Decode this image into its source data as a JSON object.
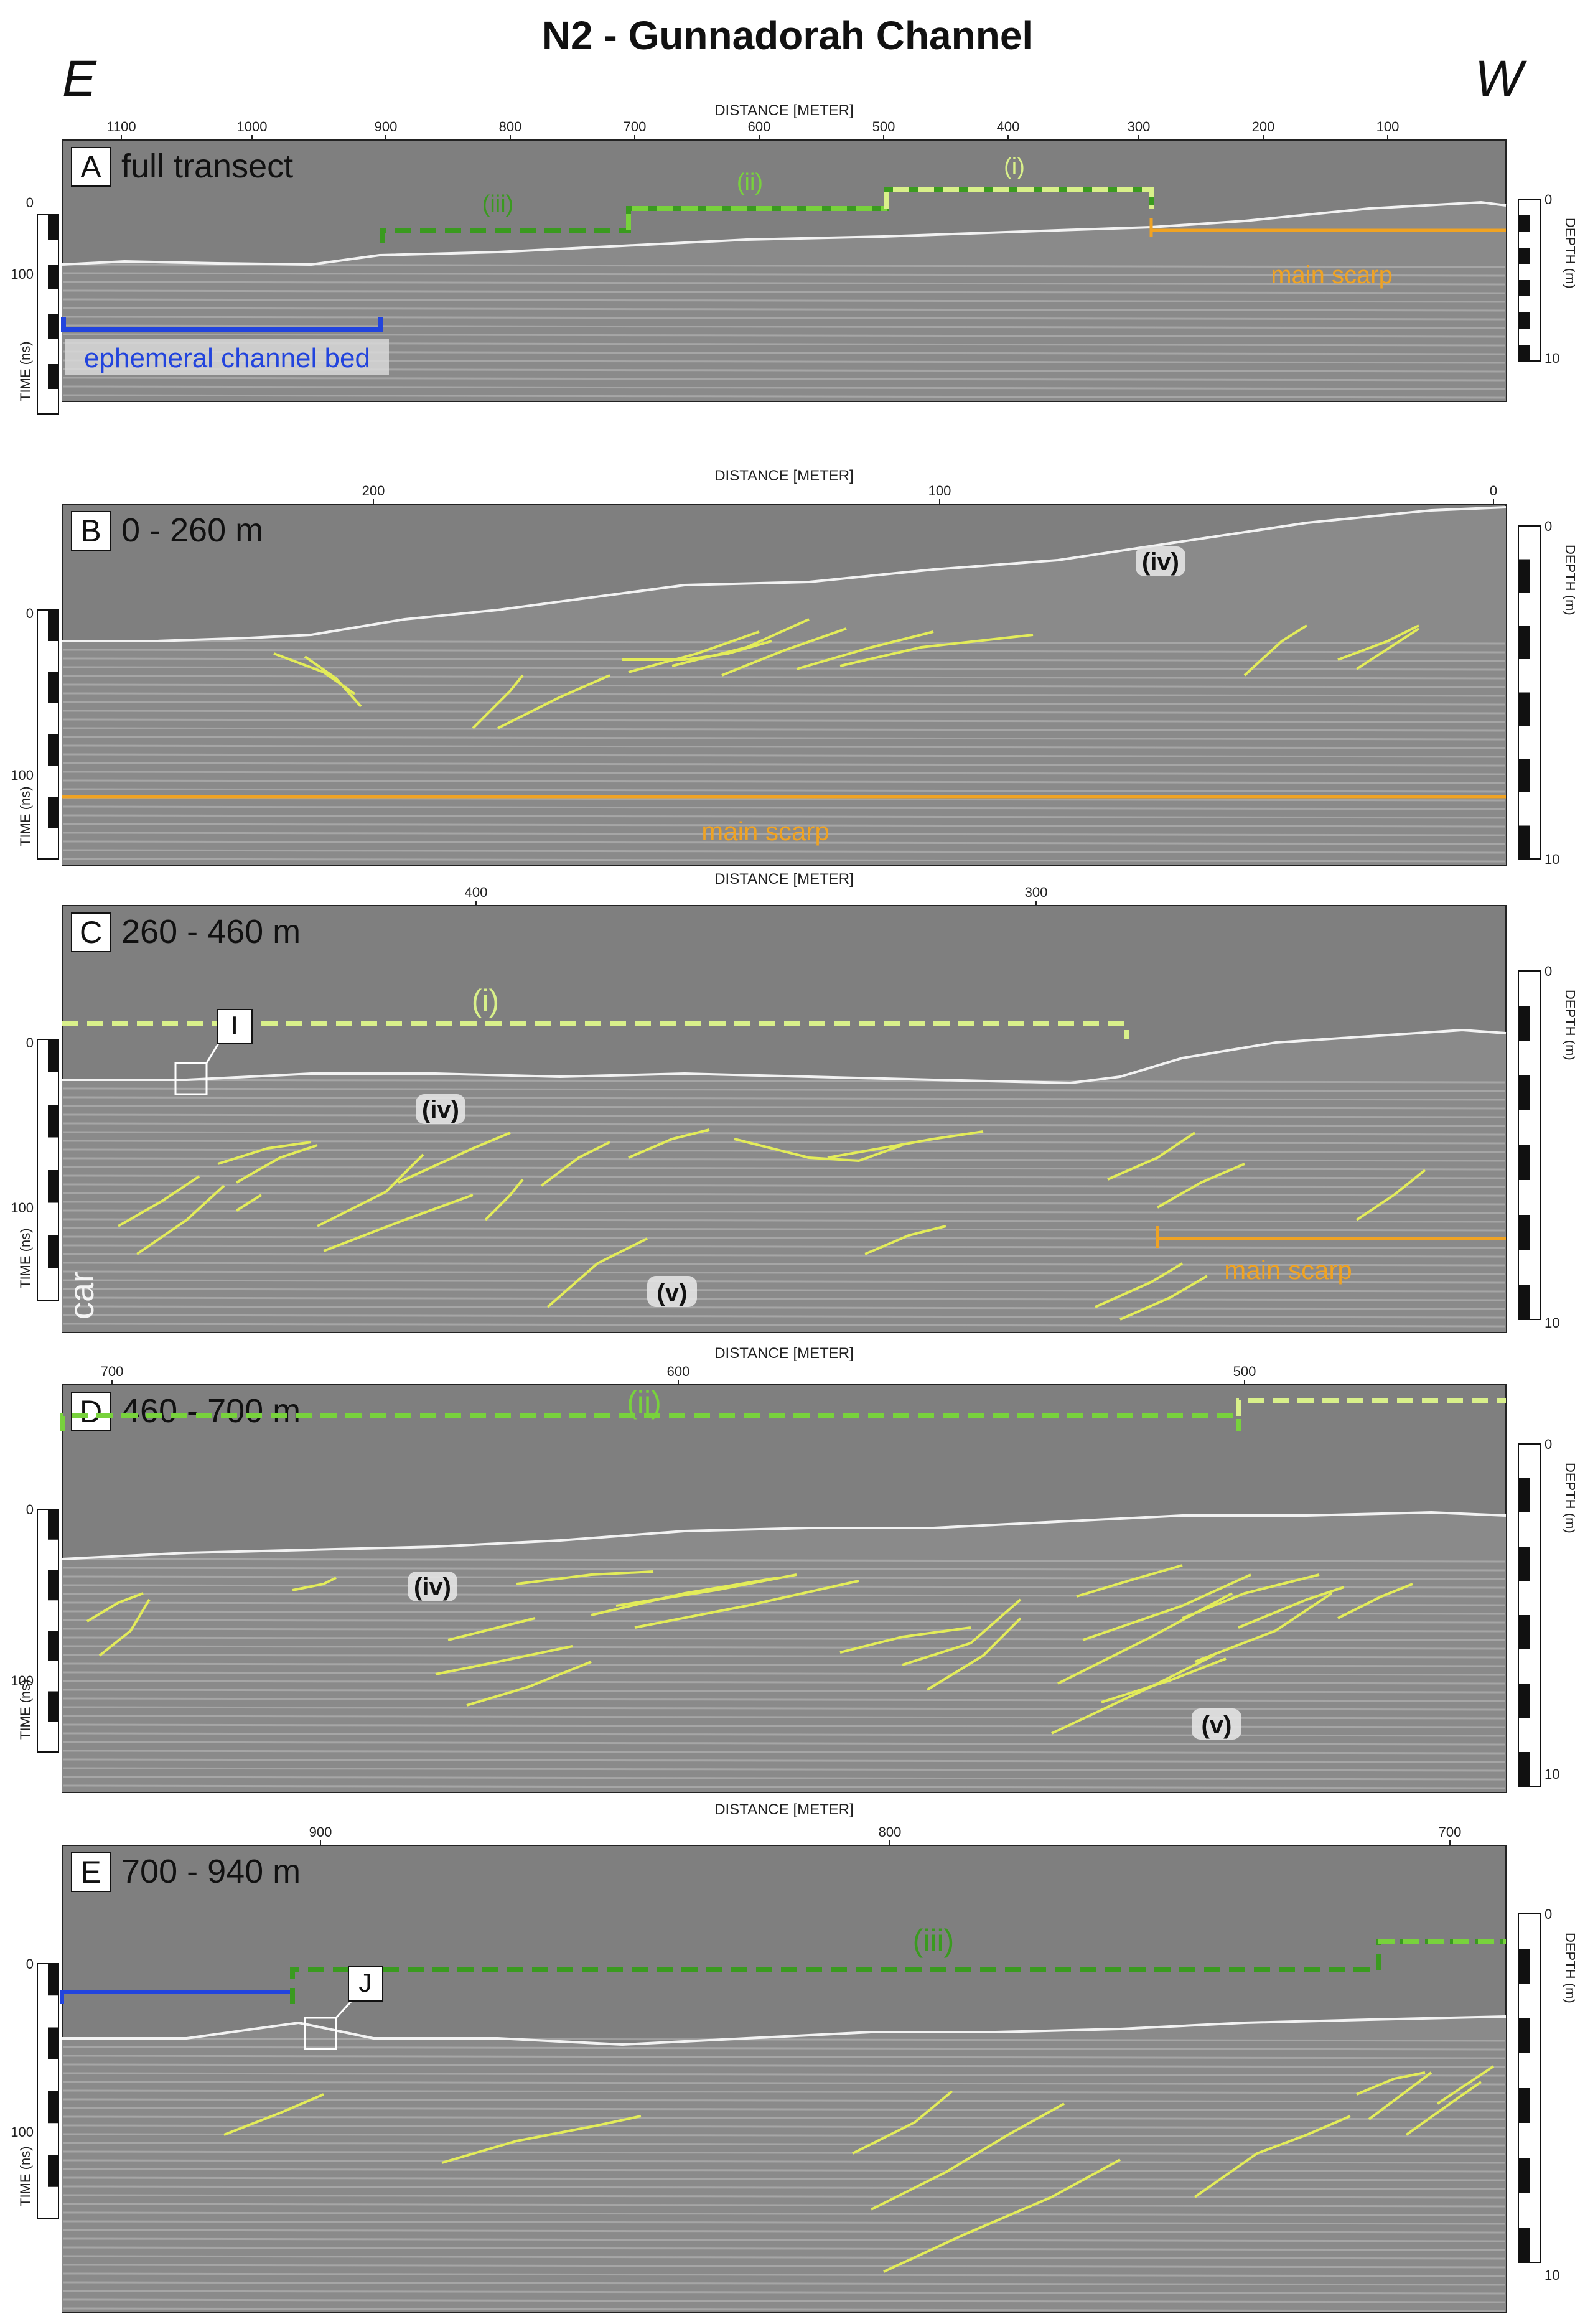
{
  "figure": {
    "title": "N2 - Gunnadorah Channel",
    "direction_left": "E",
    "direction_right": "W",
    "distance_axis_label": "DISTANCE [METER]",
    "time_axis_label": "TIME (ns)",
    "depth_axis_label": "DEPTH (m)"
  },
  "colors": {
    "radargram_bg": "#8a8a8a",
    "air_bg": "#7f7f7f",
    "reflector": "#e3ec5a",
    "main_scarp": "#f0a323",
    "terrace_i": "#d9f08a",
    "terrace_ii": "#78d23c",
    "terrace_iii": "#3a9a1f",
    "channel_bed": "#2244dd"
  },
  "panels": [
    {
      "key": "A",
      "letter": "A",
      "title": "full transect",
      "distance_ticks": [
        "1100",
        "1000",
        "900",
        "800",
        "700",
        "600",
        "500",
        "400",
        "300",
        "200",
        "100"
      ],
      "time_ticks": [
        "0",
        "100"
      ],
      "depth_ticks": [
        "0",
        "10"
      ],
      "annotations": {
        "terrace_iii": "(iii)",
        "terrace_ii": "(ii)",
        "terrace_i": "(i)",
        "main_scarp": "main scarp",
        "channel_bed": "ephemeral channel bed"
      }
    },
    {
      "key": "B",
      "letter": "B",
      "title": "0 - 260 m",
      "distance_ticks": [
        "200",
        "100",
        "0"
      ],
      "time_ticks": [
        "0",
        "100"
      ],
      "depth_ticks": [
        "0",
        "10"
      ],
      "annotations": {
        "facies_iv": "(iv)",
        "main_scarp": "main scarp"
      }
    },
    {
      "key": "C",
      "letter": "C",
      "title": "260 - 460 m",
      "distance_ticks": [
        "400",
        "300"
      ],
      "time_ticks": [
        "0",
        "100"
      ],
      "depth_ticks": [
        "0",
        "10"
      ],
      "annotations": {
        "terrace_i": "(i)",
        "inset": "I",
        "facies_iv": "(iv)",
        "facies_v": "(v)",
        "car": "car",
        "main_scarp": "main scarp"
      }
    },
    {
      "key": "D",
      "letter": "D",
      "title": "460 - 700 m",
      "distance_ticks": [
        "700",
        "600",
        "500"
      ],
      "time_ticks": [
        "0",
        "100"
      ],
      "depth_ticks": [
        "0",
        "10"
      ],
      "annotations": {
        "terrace_ii": "(ii)",
        "facies_iv": "(iv)",
        "facies_v": "(v)"
      }
    },
    {
      "key": "E",
      "letter": "E",
      "title": "700 - 940 m",
      "distance_ticks": [
        "900",
        "800",
        "700"
      ],
      "time_ticks": [
        "0",
        "100"
      ],
      "depth_ticks": [
        "0",
        "10"
      ],
      "annotations": {
        "terrace_iii": "(iii)",
        "inset": "J"
      }
    }
  ]
}
